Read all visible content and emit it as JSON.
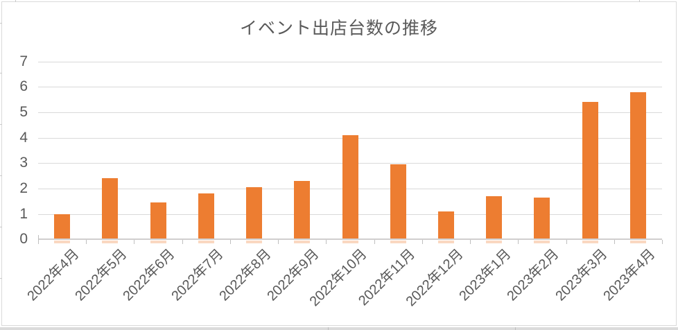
{
  "chart_data": {
    "type": "bar",
    "title": "イベント出店台数の推移",
    "categories": [
      "2022年4月",
      "2022年5月",
      "2022年6月",
      "2022年7月",
      "2022年8月",
      "2022年9月",
      "2022年10月",
      "2022年11月",
      "2022年12月",
      "2023年1月",
      "2023年2月",
      "2023年3月",
      "2023年4月"
    ],
    "values": [
      1.0,
      2.4,
      1.45,
      1.8,
      2.05,
      2.3,
      4.1,
      2.95,
      1.1,
      1.7,
      1.65,
      5.4,
      5.8
    ],
    "xlabel": "",
    "ylabel": "",
    "ylim": [
      0,
      7
    ],
    "yticks": [
      0,
      1,
      2,
      3,
      4,
      5,
      6,
      7
    ],
    "grid": true,
    "legend_position": "none",
    "bar_color": "#ED7D31",
    "grid_color": "#D9D9D9",
    "axis_color": "#D0CECE",
    "text_color": "#595959",
    "background_color": "#FFFFFF"
  }
}
